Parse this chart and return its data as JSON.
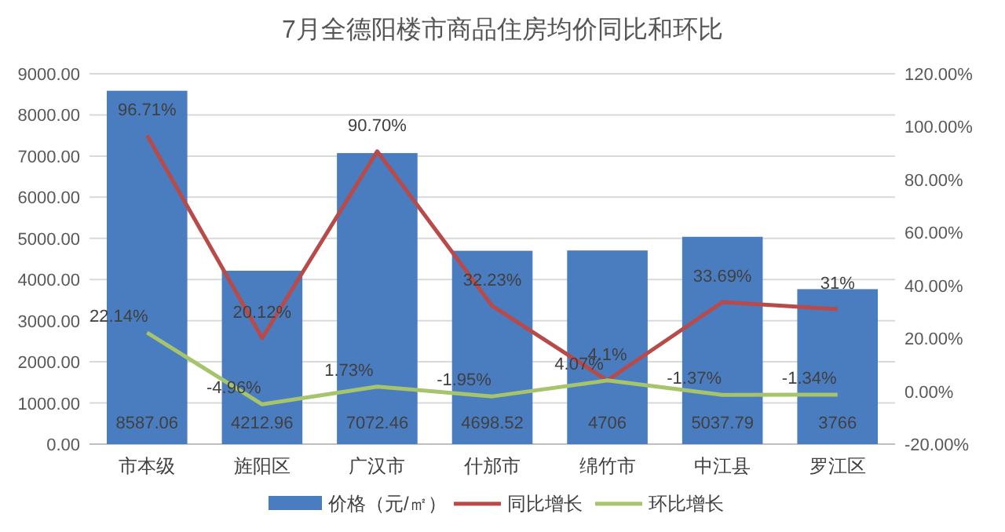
{
  "chart_data": {
    "type": "bar",
    "title": "7月全德阳楼市商品住房均价同比和环比",
    "categories": [
      "市本级",
      "旌阳区",
      "广汉市",
      "什邡市",
      "绵竹市",
      "中江县",
      "罗江区"
    ],
    "series": [
      {
        "name": "价格（元/㎡）",
        "color": "#4a7cc0",
        "values": [
          8587.06,
          4212.96,
          7072.46,
          4698.52,
          4706,
          5037.79,
          3766
        ],
        "value_labels": [
          "8587.06",
          "4212.96",
          "7072.46",
          "4698.52",
          "4706",
          "5037.79",
          "3766"
        ]
      },
      {
        "name": "同比增长",
        "type": "line",
        "axis": "y2",
        "color": "#b84a4a",
        "values": [
          96.71,
          20.12,
          90.7,
          32.23,
          4.1,
          33.69,
          31
        ],
        "value_labels": [
          "96.71%",
          "20.12%",
          "90.70%",
          "32.23%",
          "4.1%",
          "33.69%",
          "31%"
        ]
      },
      {
        "name": "环比增长",
        "type": "line",
        "axis": "y2",
        "color": "#a5c46b",
        "values": [
          22.14,
          -4.96,
          1.73,
          -1.95,
          4.07,
          -1.37,
          -1.34
        ],
        "value_labels": [
          "22.14%",
          "-4.96%",
          "1.73%",
          "-1.95%",
          "4.07%",
          "-1.37%",
          "-1.34%"
        ]
      }
    ],
    "ylim": [
      0,
      9000
    ],
    "yticks": [
      {
        "value": 0,
        "label": "0.00"
      },
      {
        "value": 1000,
        "label": "1000.00"
      },
      {
        "value": 2000,
        "label": "2000.00"
      },
      {
        "value": 3000,
        "label": "3000.00"
      },
      {
        "value": 4000,
        "label": "4000.00"
      },
      {
        "value": 5000,
        "label": "5000.00"
      },
      {
        "value": 6000,
        "label": "6000.00"
      },
      {
        "value": 7000,
        "label": "7000.00"
      },
      {
        "value": 8000,
        "label": "8000.00"
      },
      {
        "value": 9000,
        "label": "9000.00"
      }
    ],
    "y2lim": [
      -20,
      120
    ],
    "y2ticks": [
      {
        "value": -20,
        "label": "-20.00%"
      },
      {
        "value": 0,
        "label": "0.00%"
      },
      {
        "value": 20,
        "label": "20.00%"
      },
      {
        "value": 40,
        "label": "40.00%"
      },
      {
        "value": 60,
        "label": "60.00%"
      },
      {
        "value": 80,
        "label": "80.00%"
      },
      {
        "value": 100,
        "label": "100.00%"
      },
      {
        "value": 120,
        "label": "120.00%"
      }
    ],
    "grid": "y",
    "legend": "bottom",
    "marker": "none",
    "line_style": "solid"
  }
}
